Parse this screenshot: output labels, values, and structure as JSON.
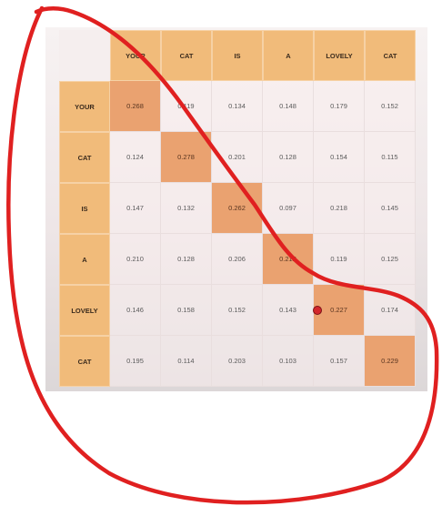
{
  "matrix": {
    "tokens": [
      "YOUR",
      "CAT",
      "IS",
      "A",
      "LOVELY",
      "CAT"
    ],
    "rows": [
      [
        "0.268",
        "0.119",
        "0.134",
        "0.148",
        "0.179",
        "0.152"
      ],
      [
        "0.124",
        "0.278",
        "0.201",
        "0.128",
        "0.154",
        "0.115"
      ],
      [
        "0.147",
        "0.132",
        "0.262",
        "0.097",
        "0.218",
        "0.145"
      ],
      [
        "0.210",
        "0.128",
        "0.206",
        "0.212",
        "0.119",
        "0.125"
      ],
      [
        "0.146",
        "0.158",
        "0.152",
        "0.143",
        "0.227",
        "0.174"
      ],
      [
        "0.195",
        "0.114",
        "0.203",
        "0.103",
        "0.157",
        "0.229"
      ]
    ]
  },
  "colors": {
    "header": "#f1bb7a",
    "diagonal": "#eaa270",
    "annotation": "#e02020",
    "cursor_dot": "#d3262b"
  }
}
